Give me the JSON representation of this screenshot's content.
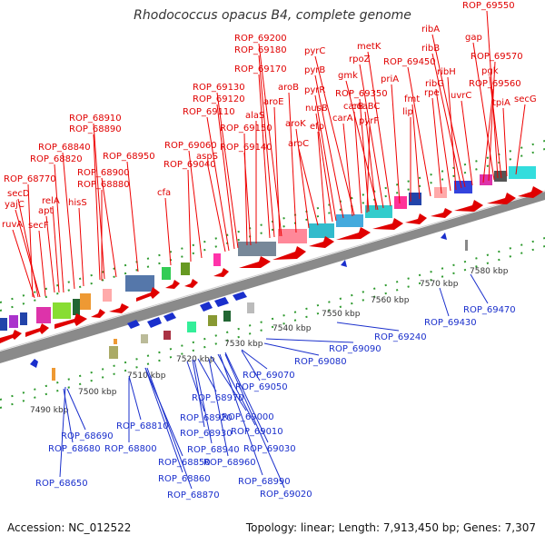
{
  "title": "Rhodococcus opacus B4, complete genome",
  "footer": {
    "accession": "Accession: NC_012522",
    "summary": "Topology: linear; Length: 7,913,450 bp; Genes: 7,307"
  },
  "colors": {
    "upper_genes": "#dd0000",
    "lower_genes": "#1a2fcc",
    "ruler_ticks": "#2e9a2e",
    "backbone": "#888888"
  },
  "kbp_labels": [
    "7490 kbp",
    "7500 kbp",
    "7510 kbp",
    "7520 kbp",
    "7530 kbp",
    "7540 kbp",
    "7550 kbp",
    "7560 kbp",
    "7570 kbp",
    "7580 kbp"
  ],
  "upper_labels": [
    "ruvA",
    "secF",
    "yajC",
    "secD",
    "apt",
    "relA",
    "hisS",
    "ROP_68770",
    "ROP_68820",
    "ROP_68840",
    "ROP_68880",
    "ROP_68900",
    "ROP_68890",
    "ROP_68910",
    "ROP_68950",
    "cfa",
    "ROP_69040",
    "ROP_69060",
    "aspS",
    "ROP_69110",
    "ROP_69120",
    "ROP_69130",
    "ROP_69140",
    "ROP_69150",
    "alaS",
    "ROP_69170",
    "ROP_69180",
    "ROP_69200",
    "aroE",
    "aroB",
    "aroK",
    "aroC",
    "efp",
    "nusB",
    "pyrR",
    "pyrB",
    "pyrC",
    "carA",
    "carB",
    "pyrF",
    "ROP_69350",
    "coaBC",
    "gmk",
    "rpoZ",
    "metK",
    "priA",
    "lip",
    "fmt",
    "ROP_69450",
    "rpe",
    "ribG",
    "ribH",
    "ribB",
    "ribA",
    "uvrC",
    "ROP_69560",
    "ROP_69570",
    "gap",
    "pgk",
    "tpiA",
    "ROP_69550",
    "secG"
  ],
  "lower_labels": [
    "ROP_68650",
    "ROP_68680",
    "ROP_68690",
    "ROP_68800",
    "ROP_68810",
    "ROP_68850",
    "ROP_68860",
    "ROP_68870",
    "ROP_68920",
    "ROP_68930",
    "ROP_68940",
    "ROP_68960",
    "ROP_68970",
    "ROP_68990",
    "ROP_69000",
    "ROP_69010",
    "ROP_69020",
    "ROP_69030",
    "ROP_69050",
    "ROP_69070",
    "ROP_69080",
    "ROP_69090",
    "ROP_69240",
    "ROP_69430",
    "ROP_69470"
  ]
}
